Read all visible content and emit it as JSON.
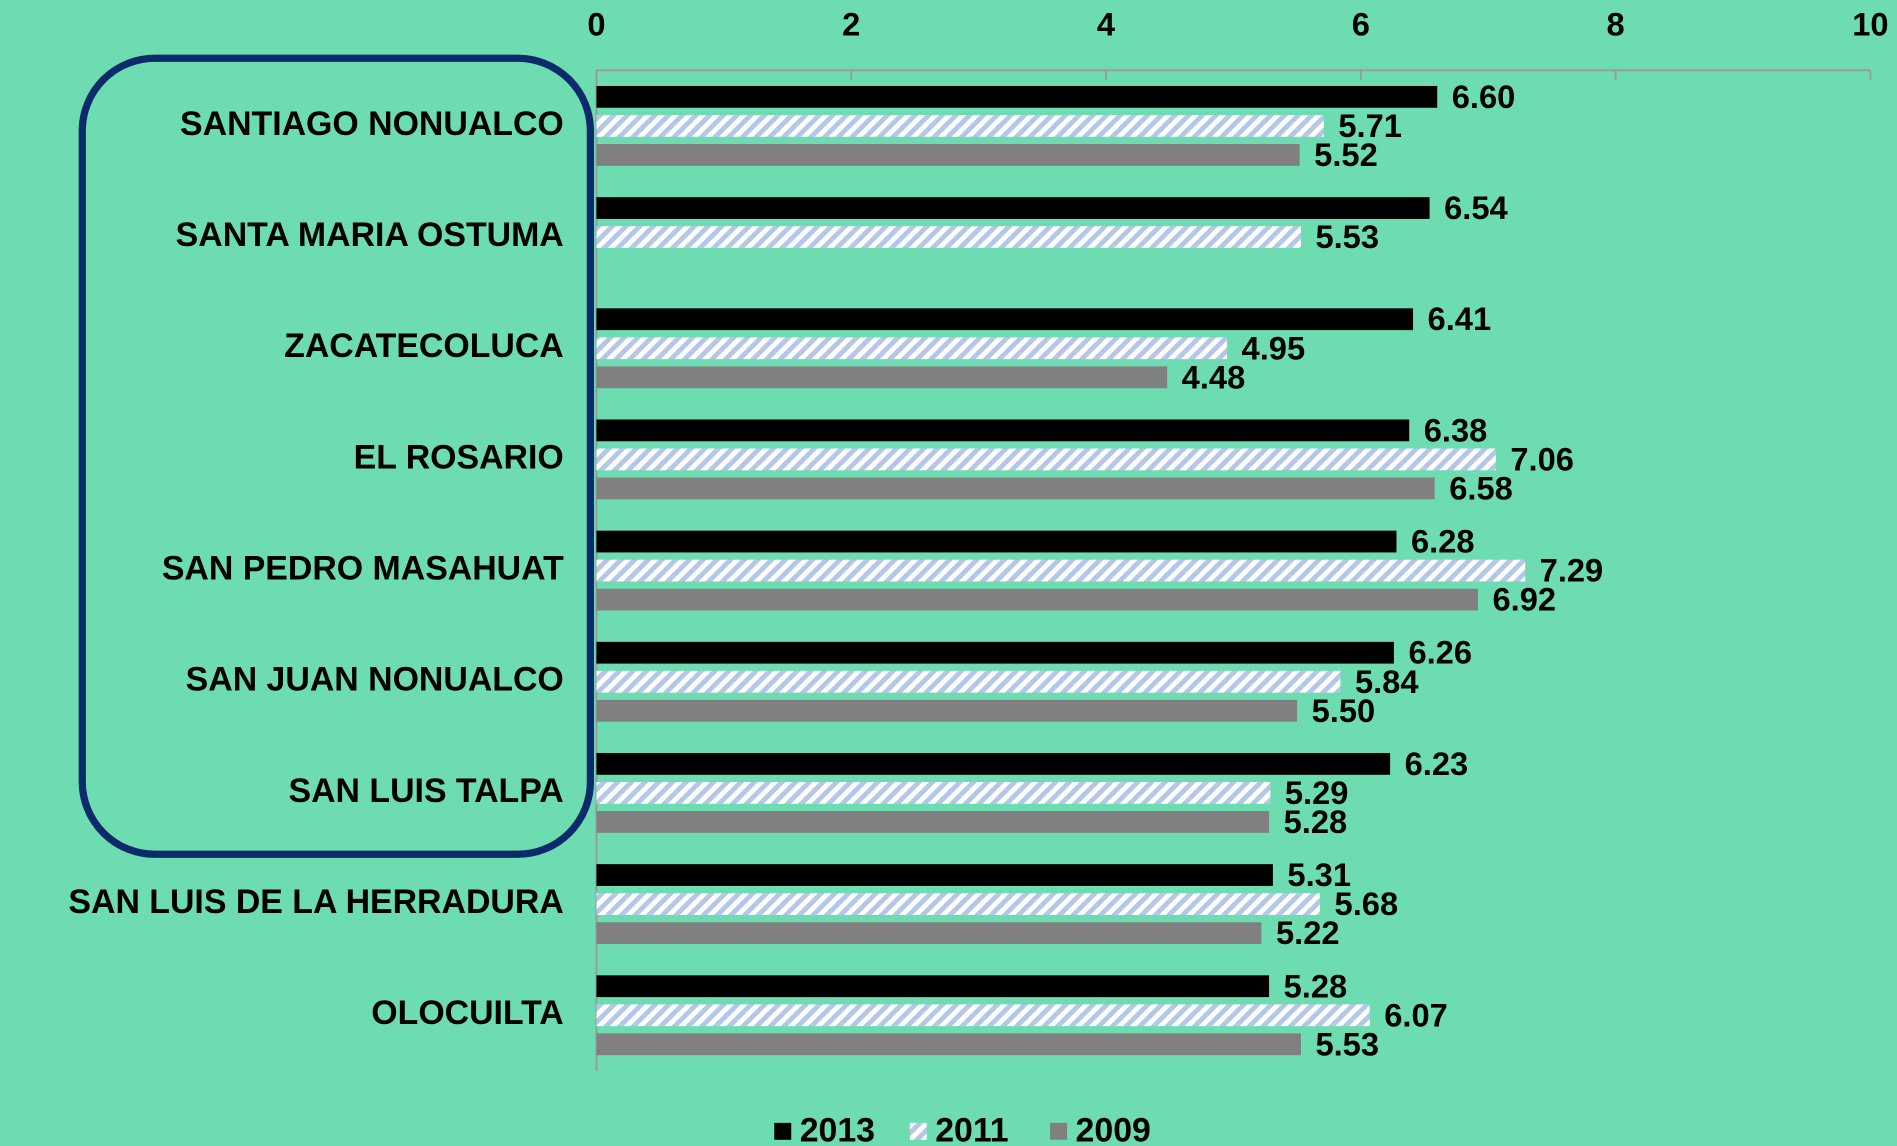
{
  "chart_data": {
    "type": "bar",
    "orientation": "horizontal",
    "categories": [
      "SANTIAGO NONUALCO",
      "SANTA MARIA OSTUMA",
      "ZACATECOLUCA",
      "EL ROSARIO",
      "SAN PEDRO MASAHUAT",
      "SAN JUAN NONUALCO",
      "SAN LUIS TALPA",
      "SAN LUIS DE LA HERRADURA",
      "OLOCUILTA"
    ],
    "series": [
      {
        "name": "2013",
        "color": "#000000",
        "pattern": "solid",
        "values": [
          6.6,
          6.54,
          6.41,
          6.38,
          6.28,
          6.26,
          6.23,
          5.31,
          5.28
        ],
        "value_labels": [
          "6.60",
          "6.54",
          "6.41",
          "6.38",
          "6.28",
          "6.26",
          "6.23",
          "5.31",
          "5.28"
        ]
      },
      {
        "name": "2011",
        "color": "#b4c7e7",
        "pattern": "hatch",
        "values": [
          5.71,
          5.53,
          4.95,
          7.06,
          7.29,
          5.84,
          5.29,
          5.68,
          6.07
        ],
        "value_labels": [
          "5.71",
          "5.53",
          "4.95",
          "7.06",
          "7.29",
          "5.84",
          "5.29",
          "5.68",
          "6.07"
        ]
      },
      {
        "name": "2009",
        "color": "#808080",
        "pattern": "solid",
        "values": [
          5.52,
          null,
          4.48,
          6.58,
          6.92,
          5.5,
          5.28,
          5.22,
          5.53
        ],
        "value_labels": [
          "5.52",
          null,
          "4.48",
          "6.58",
          "6.92",
          "5.50",
          "5.28",
          "5.22",
          "5.53"
        ]
      }
    ],
    "xlim": [
      0,
      10
    ],
    "xticks": [
      0,
      2,
      4,
      6,
      8,
      10
    ],
    "legend": "bottom"
  }
}
